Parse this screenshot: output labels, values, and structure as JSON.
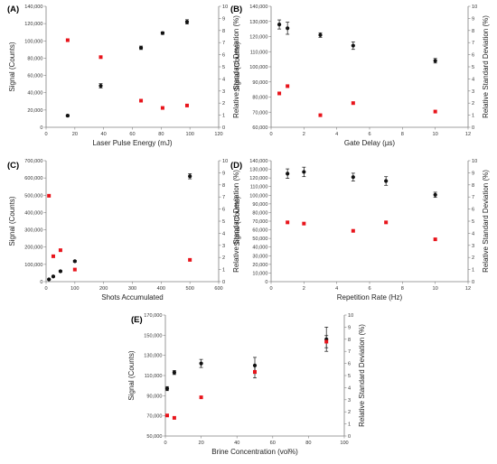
{
  "colors": {
    "signal": "#111111",
    "rsd": "#e8141b",
    "axis": "#7f7f7f"
  },
  "chart_data": [
    {
      "panel_label": "(A)",
      "type": "scatter",
      "xlabel": "Laser Pulse Energy (mJ)",
      "ylabel": "Signal (Counts)",
      "y2label": "Relative Standard Deviation (%)",
      "xlim": [
        0,
        120
      ],
      "xticks": [
        0,
        20,
        40,
        60,
        80,
        100,
        120
      ],
      "ylim": [
        0,
        140000
      ],
      "yticks": [
        0,
        20000,
        40000,
        60000,
        80000,
        100000,
        120000,
        140000
      ],
      "yticklabels": [
        "0",
        "20,000",
        "40,000",
        "60,000",
        "80,000",
        "100,000",
        "120,000",
        "140,000"
      ],
      "y2lim": [
        0,
        10
      ],
      "y2ticks": [
        0,
        1,
        2,
        3,
        4,
        5,
        6,
        7,
        8,
        9,
        10
      ],
      "grid": false,
      "series": [
        {
          "axis": "left",
          "marker": "circle",
          "color": "#111111",
          "x": [
            15,
            38,
            66,
            81,
            98
          ],
          "y": [
            13500,
            48000,
            92000,
            109000,
            122000
          ],
          "err": [
            1000,
            2500,
            2000,
            1500,
            2500
          ]
        },
        {
          "axis": "right",
          "marker": "square",
          "color": "#e8141b",
          "x": [
            15,
            38,
            66,
            81,
            98
          ],
          "y": [
            7.2,
            5.8,
            2.2,
            1.6,
            1.8
          ],
          "err": [
            0,
            0,
            0,
            0,
            0
          ]
        }
      ]
    },
    {
      "panel_label": "(B)",
      "type": "scatter",
      "xlabel": "Gate Delay (µs)",
      "ylabel": "Signal (Counts)",
      "y2label": "Relative Standard Deviation (%)",
      "xlim": [
        0,
        12
      ],
      "xticks": [
        0,
        2,
        4,
        6,
        8,
        10,
        12
      ],
      "ylim": [
        60000,
        140000
      ],
      "yticks": [
        60000,
        70000,
        80000,
        90000,
        100000,
        110000,
        120000,
        130000,
        140000
      ],
      "yticklabels": [
        "60,000",
        "70,000",
        "80,000",
        "90,000",
        "100,000",
        "110,000",
        "120,000",
        "130,000",
        "140,000"
      ],
      "y2lim": [
        0,
        10
      ],
      "y2ticks": [
        0,
        1,
        2,
        3,
        4,
        5,
        6,
        7,
        8,
        9,
        10
      ],
      "grid": false,
      "series": [
        {
          "axis": "left",
          "marker": "circle",
          "color": "#111111",
          "x": [
            0.5,
            1,
            3,
            5,
            10
          ],
          "y": [
            128000,
            125500,
            121000,
            114000,
            104000
          ],
          "err": [
            3000,
            4000,
            1500,
            2500,
            1500
          ]
        },
        {
          "axis": "right",
          "marker": "square",
          "color": "#e8141b",
          "x": [
            0.5,
            1,
            3,
            5,
            10
          ],
          "y": [
            2.8,
            3.4,
            1.0,
            2.0,
            1.3
          ],
          "err": [
            0,
            0,
            0,
            0,
            0
          ]
        }
      ]
    },
    {
      "panel_label": "(C)",
      "type": "scatter",
      "xlabel": "Shots Accumulated",
      "ylabel": "Signal (Counts)",
      "y2label": "Relative Standard Deviation (%)",
      "xlim": [
        0,
        600
      ],
      "xticks": [
        0,
        100,
        200,
        300,
        400,
        500,
        600
      ],
      "ylim": [
        0,
        700000
      ],
      "yticks": [
        0,
        100000,
        200000,
        300000,
        400000,
        500000,
        600000,
        700000
      ],
      "yticklabels": [
        "0",
        "100,000",
        "200,000",
        "300,000",
        "400,000",
        "500,000",
        "600,000",
        "700,000"
      ],
      "y2lim": [
        0,
        10
      ],
      "y2ticks": [
        0,
        1,
        2,
        3,
        4,
        5,
        6,
        7,
        8,
        9,
        10
      ],
      "grid": false,
      "series": [
        {
          "axis": "left",
          "marker": "circle",
          "color": "#111111",
          "x": [
            10,
            25,
            50,
            100,
            500
          ],
          "y": [
            13000,
            30000,
            60000,
            118000,
            610000
          ],
          "err": [
            2000,
            3000,
            4000,
            5000,
            15000
          ]
        },
        {
          "axis": "right",
          "marker": "square",
          "color": "#e8141b",
          "x": [
            10,
            25,
            50,
            100,
            500
          ],
          "y": [
            7.1,
            2.1,
            2.6,
            1.0,
            1.8
          ],
          "err": [
            0,
            0,
            0,
            0,
            0
          ]
        }
      ]
    },
    {
      "panel_label": "(D)",
      "type": "scatter",
      "xlabel": "Repetition Rate (Hz)",
      "ylabel": "Signal (Counts)",
      "y2label": "Relative Standard Deviation (%)",
      "xlim": [
        0,
        12
      ],
      "xticks": [
        0,
        2,
        4,
        6,
        8,
        10,
        12
      ],
      "ylim": [
        0,
        140000
      ],
      "yticks": [
        0,
        10000,
        20000,
        30000,
        40000,
        50000,
        60000,
        70000,
        80000,
        90000,
        100000,
        110000,
        120000,
        130000,
        140000
      ],
      "yticklabels": [
        "0",
        "10,000",
        "20,000",
        "30,000",
        "40,000",
        "50,000",
        "60,000",
        "70,000",
        "80,000",
        "90,000",
        "100,000",
        "110,000",
        "120,000",
        "130,000",
        "140,000"
      ],
      "y2lim": [
        0,
        10
      ],
      "y2ticks": [
        0,
        1,
        2,
        3,
        4,
        5,
        6,
        7,
        8,
        9,
        10
      ],
      "grid": false,
      "series": [
        {
          "axis": "left",
          "marker": "circle",
          "color": "#111111",
          "x": [
            1,
            2,
            5,
            7,
            10
          ],
          "y": [
            125000,
            127000,
            121000,
            116500,
            100500
          ],
          "err": [
            5500,
            5500,
            4500,
            5000,
            3000
          ]
        },
        {
          "axis": "right",
          "marker": "square",
          "color": "#e8141b",
          "x": [
            1,
            2,
            5,
            7,
            10
          ],
          "y": [
            4.9,
            4.8,
            4.2,
            4.9,
            3.5
          ],
          "err": [
            0,
            0,
            0,
            0,
            0
          ]
        }
      ]
    },
    {
      "panel_label": "(E)",
      "type": "scatter",
      "xlabel": "Brine Concentration (vol%)",
      "ylabel": "Signal (Counts)",
      "y2label": "Relative Standard Deviation (%)",
      "xlim": [
        0,
        100
      ],
      "xticks": [
        0,
        20,
        40,
        60,
        80,
        100
      ],
      "ylim": [
        50000,
        170000
      ],
      "yticks": [
        50000,
        70000,
        90000,
        110000,
        130000,
        150000,
        170000
      ],
      "yticklabels": [
        "50,000",
        "70,000",
        "90,000",
        "110,000",
        "130,000",
        "150,000",
        "170,000"
      ],
      "y2lim": [
        0,
        10
      ],
      "y2ticks": [
        0,
        1,
        2,
        3,
        4,
        5,
        6,
        7,
        8,
        9,
        10
      ],
      "grid": false,
      "series": [
        {
          "axis": "left",
          "marker": "circle",
          "color": "#111111",
          "x": [
            1,
            5,
            20,
            50,
            90
          ],
          "y": [
            97000,
            113000,
            122000,
            120000,
            146000
          ],
          "err": [
            2000,
            2000,
            4000,
            8000,
            12000
          ]
        },
        {
          "axis": "right",
          "marker": "square",
          "color": "#e8141b",
          "x": [
            1,
            5,
            20,
            50,
            90
          ],
          "y": [
            1.7,
            1.5,
            3.2,
            5.3,
            7.8
          ],
          "err": [
            0,
            0,
            0,
            0.5,
            0.5
          ]
        }
      ]
    }
  ]
}
